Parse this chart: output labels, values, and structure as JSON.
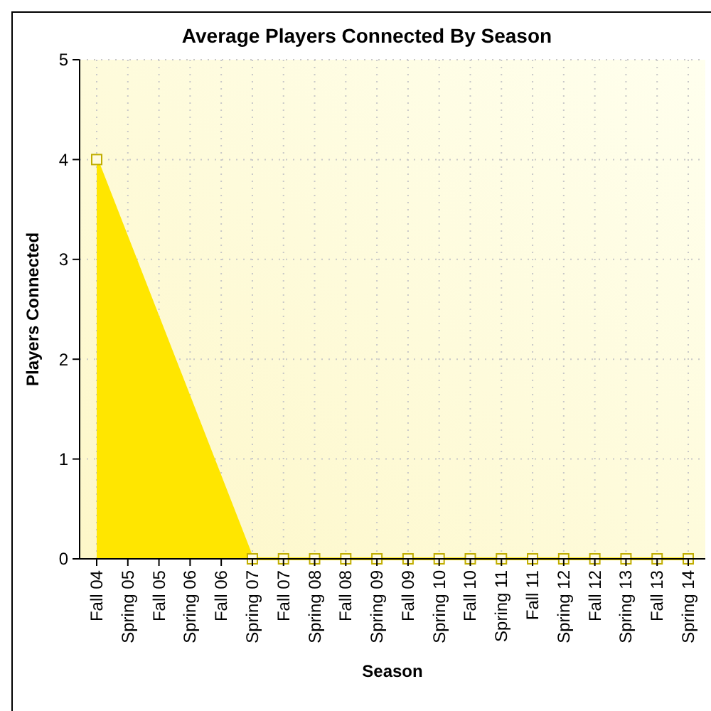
{
  "chart_data": {
    "type": "area",
    "title": "Average Players Connected By Season",
    "xlabel": "Season",
    "ylabel": "Players Connected",
    "categories": [
      "Fall 04",
      "Spring 05",
      "Fall 05",
      "Spring 06",
      "Fall 06",
      "Spring 07",
      "Fall 07",
      "Spring 08",
      "Fall 08",
      "Spring 09",
      "Fall 09",
      "Spring 10",
      "Fall 10",
      "Spring 11",
      "Fall 11",
      "Spring 12",
      "Fall 12",
      "Spring 13",
      "Fall 13",
      "Spring 14"
    ],
    "series": [
      {
        "color": "#ffe600",
        "values": [
          4,
          null,
          null,
          null,
          null,
          0,
          0,
          0,
          0,
          0,
          0,
          0,
          0,
          0,
          0,
          0,
          0,
          0,
          0,
          0
        ]
      }
    ],
    "ylim": [
      0,
      5
    ],
    "yticks": [
      0,
      1,
      2,
      3,
      4,
      5
    ],
    "grid": true,
    "marker": "square"
  }
}
